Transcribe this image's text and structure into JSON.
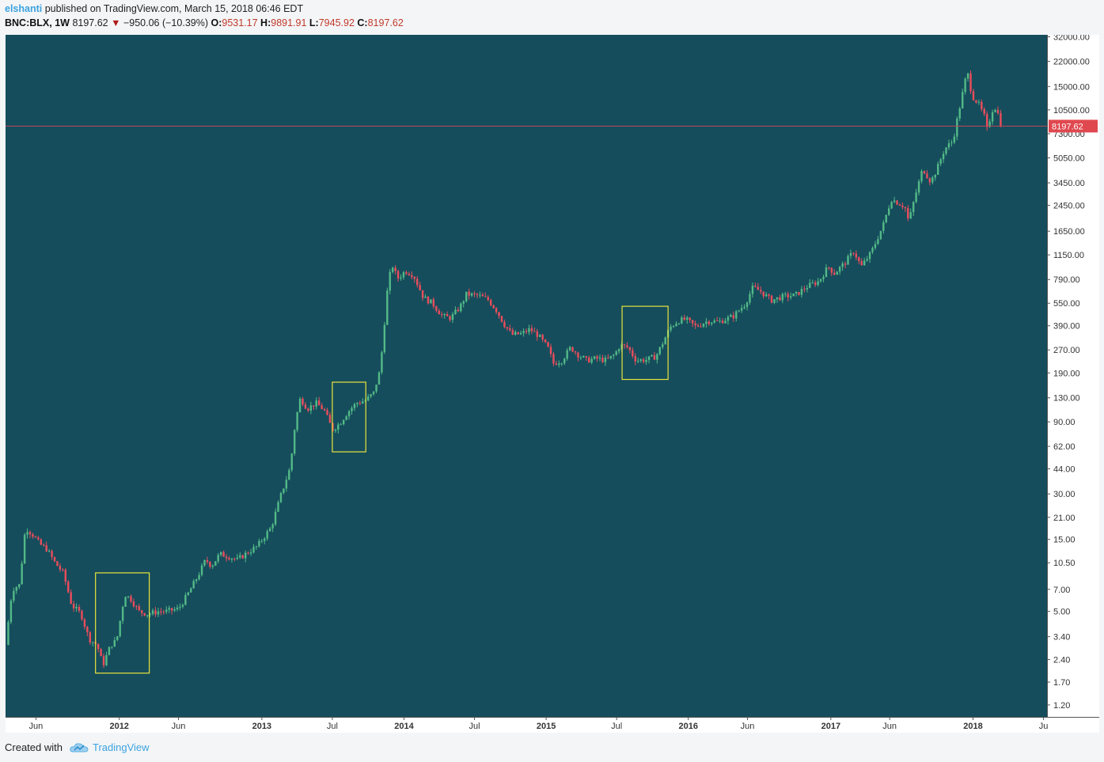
{
  "header": {
    "user": "elshanti",
    "published": "published on TradingView.com, March 15, 2018 06:46 EDT"
  },
  "ticker": {
    "symbol": "BNC:BLX, 1W",
    "last": "8197.62",
    "change": "−950.06 (−10.39%)",
    "open_label": "O:",
    "open": "9531.17",
    "high_label": "H:",
    "high": "9891.91",
    "low_label": "L:",
    "low": "7945.92",
    "close_label": "C:",
    "close": "8197.62"
  },
  "colors": {
    "background": "#154d5c",
    "up": "#53b987",
    "down": "#eb4d5c",
    "box": "#e9e43c",
    "price_line": "#c0485a"
  },
  "chart_data": {
    "type": "candlestick",
    "scale": "log",
    "ylim": [
      1.0,
      33000
    ],
    "last_price_label": "8197.62",
    "y_ticks": [
      "32000.00",
      "22000.00",
      "15000.00",
      "10500.00",
      "7300.00",
      "5050.00",
      "3450.00",
      "2450.00",
      "1650.00",
      "1150.00",
      "790.00",
      "550.00",
      "390.00",
      "270.00",
      "190.00",
      "130.00",
      "90.00",
      "62.00",
      "44.00",
      "30.00",
      "21.00",
      "15.00",
      "10.50",
      "7.00",
      "5.00",
      "3.40",
      "2.40",
      "1.70",
      "1.20"
    ],
    "x_ticks": [
      {
        "label": "Jun",
        "date": "2011-06-01"
      },
      {
        "label": "2012",
        "date": "2012-01-01"
      },
      {
        "label": "Jun",
        "date": "2012-06-01"
      },
      {
        "label": "2013",
        "date": "2013-01-01"
      },
      {
        "label": "Jul",
        "date": "2013-07-01"
      },
      {
        "label": "2014",
        "date": "2014-01-01"
      },
      {
        "label": "Jul",
        "date": "2014-07-01"
      },
      {
        "label": "2015",
        "date": "2015-01-01"
      },
      {
        "label": "Jul",
        "date": "2015-07-01"
      },
      {
        "label": "2016",
        "date": "2016-01-01"
      },
      {
        "label": "Jun",
        "date": "2016-06-01"
      },
      {
        "label": "2017",
        "date": "2017-01-01"
      },
      {
        "label": "Jun",
        "date": "2017-06-01"
      },
      {
        "label": "2018",
        "date": "2018-01-01"
      },
      {
        "label": "Ju",
        "date": "2018-07-01"
      }
    ],
    "x_range": [
      "2011-03-15",
      "2018-07-10"
    ],
    "price_path": [
      [
        "2011-03-15",
        3.0
      ],
      [
        "2011-04-01",
        7.0
      ],
      [
        "2011-04-20",
        7.5
      ],
      [
        "2011-05-05",
        18.0
      ],
      [
        "2011-05-25",
        16.0
      ],
      [
        "2011-06-10",
        14.0
      ],
      [
        "2011-06-28",
        13.0
      ],
      [
        "2011-07-20",
        10.5
      ],
      [
        "2011-08-10",
        9.0
      ],
      [
        "2011-09-01",
        5.5
      ],
      [
        "2011-09-25",
        4.8
      ],
      [
        "2011-10-15",
        3.3
      ],
      [
        "2011-11-05",
        3.0
      ],
      [
        "2011-11-20",
        2.2
      ],
      [
        "2011-12-10",
        3.0
      ],
      [
        "2011-12-25",
        3.2
      ],
      [
        "2012-01-15",
        6.5
      ],
      [
        "2012-02-01",
        6.0
      ],
      [
        "2012-02-20",
        5.0
      ],
      [
        "2012-03-15",
        4.8
      ],
      [
        "2012-04-10",
        5.0
      ],
      [
        "2012-05-01",
        5.0
      ],
      [
        "2012-06-01",
        5.2
      ],
      [
        "2012-06-25",
        6.5
      ],
      [
        "2012-07-20",
        8.5
      ],
      [
        "2012-08-10",
        11.0
      ],
      [
        "2012-08-25",
        10.0
      ],
      [
        "2012-09-15",
        12.0
      ],
      [
        "2012-10-10",
        11.5
      ],
      [
        "2012-10-30",
        11.0
      ],
      [
        "2012-11-20",
        12.0
      ],
      [
        "2012-12-20",
        13.5
      ],
      [
        "2013-01-25",
        18.0
      ],
      [
        "2013-02-20",
        30.0
      ],
      [
        "2013-03-15",
        45.0
      ],
      [
        "2013-03-28",
        90.0
      ],
      [
        "2013-04-10",
        130.0
      ],
      [
        "2013-04-28",
        110.0
      ],
      [
        "2013-05-20",
        120.0
      ],
      [
        "2013-06-10",
        108.0
      ],
      [
        "2013-07-01",
        80.0
      ],
      [
        "2013-07-20",
        88.0
      ],
      [
        "2013-08-10",
        105.0
      ],
      [
        "2013-09-01",
        120.0
      ],
      [
        "2013-09-25",
        125.0
      ],
      [
        "2013-10-15",
        140.0
      ],
      [
        "2013-11-01",
        200.0
      ],
      [
        "2013-11-20",
        700.0
      ],
      [
        "2013-12-01",
        1000.0
      ],
      [
        "2013-12-15",
        800.0
      ],
      [
        "2014-01-05",
        900.0
      ],
      [
        "2014-01-25",
        850.0
      ],
      [
        "2014-02-20",
        600.0
      ],
      [
        "2014-03-15",
        550.0
      ],
      [
        "2014-04-10",
        450.0
      ],
      [
        "2014-05-01",
        440.0
      ],
      [
        "2014-05-25",
        520.0
      ],
      [
        "2014-06-10",
        630.0
      ],
      [
        "2014-07-10",
        620.0
      ],
      [
        "2014-08-05",
        580.0
      ],
      [
        "2014-08-25",
        500.0
      ],
      [
        "2014-09-15",
        400.0
      ],
      [
        "2014-10-05",
        340.0
      ],
      [
        "2014-10-30",
        345.0
      ],
      [
        "2014-11-20",
        370.0
      ],
      [
        "2014-12-10",
        340.0
      ],
      [
        "2015-01-05",
        280.0
      ],
      [
        "2015-01-20",
        220.0
      ],
      [
        "2015-02-10",
        230.0
      ],
      [
        "2015-03-05",
        280.0
      ],
      [
        "2015-03-25",
        250.0
      ],
      [
        "2015-04-15",
        230.0
      ],
      [
        "2015-05-10",
        237.0
      ],
      [
        "2015-06-05",
        230.0
      ],
      [
        "2015-06-25",
        250.0
      ],
      [
        "2015-07-10",
        290.0
      ],
      [
        "2015-07-30",
        280.0
      ],
      [
        "2015-08-20",
        230.0
      ],
      [
        "2015-09-15",
        232.0
      ],
      [
        "2015-10-10",
        245.0
      ],
      [
        "2015-10-30",
        310.0
      ],
      [
        "2015-11-15",
        380.0
      ],
      [
        "2015-12-05",
        420.0
      ],
      [
        "2015-12-25",
        430.0
      ],
      [
        "2016-01-20",
        385.0
      ],
      [
        "2016-02-20",
        420.0
      ],
      [
        "2016-03-20",
        415.0
      ],
      [
        "2016-04-25",
        450.0
      ],
      [
        "2016-05-25",
        540.0
      ],
      [
        "2016-06-15",
        700.0
      ],
      [
        "2016-07-05",
        660.0
      ],
      [
        "2016-08-01",
        575.0
      ],
      [
        "2016-09-01",
        610.0
      ],
      [
        "2016-10-01",
        620.0
      ],
      [
        "2016-11-01",
        710.0
      ],
      [
        "2016-12-01",
        770.0
      ],
      [
        "2016-12-25",
        960.0
      ],
      [
        "2017-01-10",
        870.0
      ],
      [
        "2017-02-05",
        1010.0
      ],
      [
        "2017-03-01",
        1220.0
      ],
      [
        "2017-03-20",
        960.0
      ],
      [
        "2017-04-15",
        1200.0
      ],
      [
        "2017-05-15",
        1800.0
      ],
      [
        "2017-06-05",
        2700.0
      ],
      [
        "2017-07-10",
        2400.0
      ],
      [
        "2017-07-20",
        1900.0
      ],
      [
        "2017-08-05",
        2800.0
      ],
      [
        "2017-08-25",
        4300.0
      ],
      [
        "2017-09-15",
        3500.0
      ],
      [
        "2017-10-01",
        4300.0
      ],
      [
        "2017-10-20",
        5800.0
      ],
      [
        "2017-11-10",
        6500.0
      ],
      [
        "2017-11-28",
        11000.0
      ],
      [
        "2017-12-17",
        19000.0
      ],
      [
        "2017-12-30",
        13000.0
      ],
      [
        "2018-01-15",
        11500.0
      ],
      [
        "2018-01-30",
        9500.0
      ],
      [
        "2018-02-06",
        7800.0
      ],
      [
        "2018-02-20",
        10500.0
      ],
      [
        "2018-03-01",
        11000.0
      ],
      [
        "2018-03-15",
        8197.62
      ]
    ],
    "annotations": [
      {
        "type": "rect",
        "x1": "2011-11-01",
        "x2": "2012-03-18",
        "y_low": 1.95,
        "y_high": 9.0,
        "color": "#e9e43c"
      },
      {
        "type": "rect",
        "x1": "2013-07-01",
        "x2": "2013-09-25",
        "y_low": 57.0,
        "y_high": 165.0,
        "color": "#e9e43c"
      },
      {
        "type": "rect",
        "x1": "2015-07-15",
        "x2": "2015-11-10",
        "y_low": 172.0,
        "y_high": 525.0,
        "color": "#e9e43c"
      }
    ]
  },
  "footer": {
    "created_with": "Created with",
    "brand": "TradingView"
  }
}
